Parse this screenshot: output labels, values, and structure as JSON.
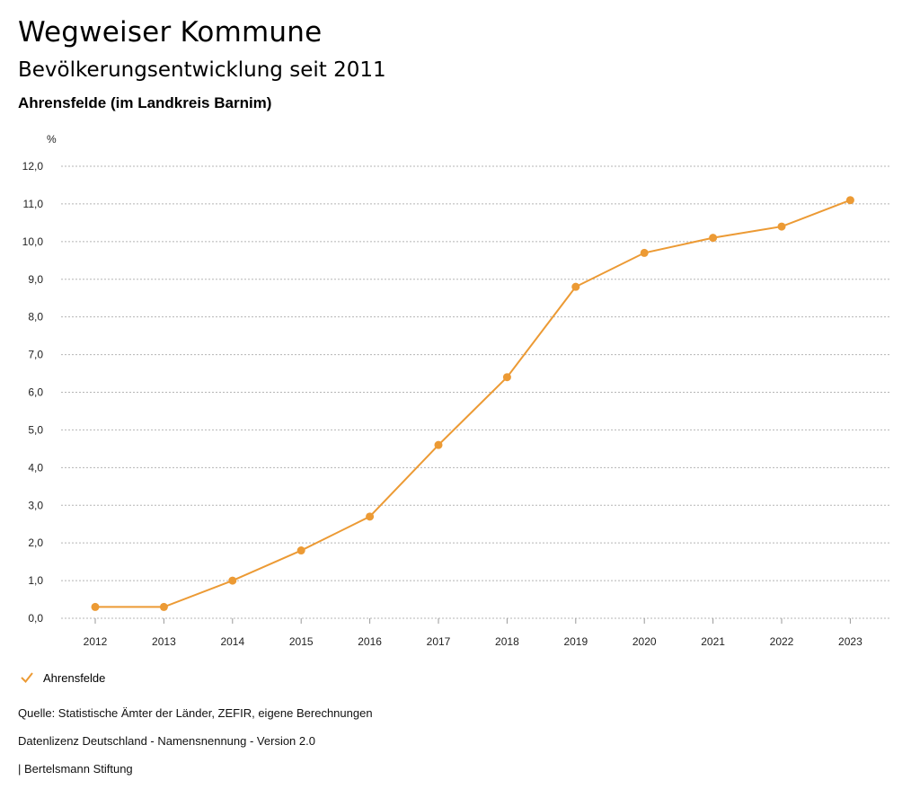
{
  "header": {
    "title": "Wegweiser Kommune",
    "subtitle": "Bevölkerungsentwicklung seit 2011",
    "region": "Ahrensfelde (im Landkreis Barnim)"
  },
  "chart_data": {
    "type": "line",
    "unit_label": "%",
    "categories": [
      "2012",
      "2013",
      "2014",
      "2015",
      "2016",
      "2017",
      "2018",
      "2019",
      "2020",
      "2021",
      "2022",
      "2023"
    ],
    "series": [
      {
        "name": "Ahrensfelde",
        "color": "#ec9a34",
        "values": [
          0.3,
          0.3,
          1.0,
          1.8,
          2.7,
          4.6,
          6.4,
          8.8,
          9.7,
          10.1,
          10.4,
          11.1
        ]
      }
    ],
    "ylim": [
      0,
      12
    ],
    "yticks": [
      0,
      1,
      2,
      3,
      4,
      5,
      6,
      7,
      8,
      9,
      10,
      11,
      12
    ],
    "ytick_labels": [
      "0,0",
      "1,0",
      "2,0",
      "3,0",
      "4,0",
      "5,0",
      "6,0",
      "7,0",
      "8,0",
      "9,0",
      "10,0",
      "11,0",
      "12,0"
    ],
    "grid": true,
    "legend_position": "bottom-left"
  },
  "legend": {
    "label": "Ahrensfelde"
  },
  "footer": {
    "source": "Quelle: Statistische Ämter der Länder, ZEFIR, eigene Berechnungen",
    "license": "Datenlizenz Deutschland - Namensnennung - Version 2.0",
    "publisher": "| Bertelsmann Stiftung"
  }
}
